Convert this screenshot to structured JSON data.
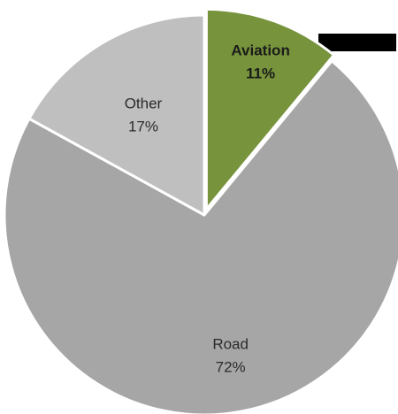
{
  "chart_data": {
    "type": "pie",
    "title": "",
    "slices": [
      {
        "label": "Aviation",
        "value": 11,
        "value_label": "11%",
        "color": "#77933c",
        "exploded": true,
        "bold": true
      },
      {
        "label": "Road",
        "value": 72,
        "value_label": "72%",
        "color": "#a6a6a6",
        "exploded": false,
        "bold": false
      },
      {
        "label": "Other",
        "value": 17,
        "value_label": "17%",
        "color": "#bfbfbf",
        "exploded": false,
        "bold": false
      }
    ],
    "legend": "none",
    "start_angle": "12 o'clock, clockwise"
  }
}
